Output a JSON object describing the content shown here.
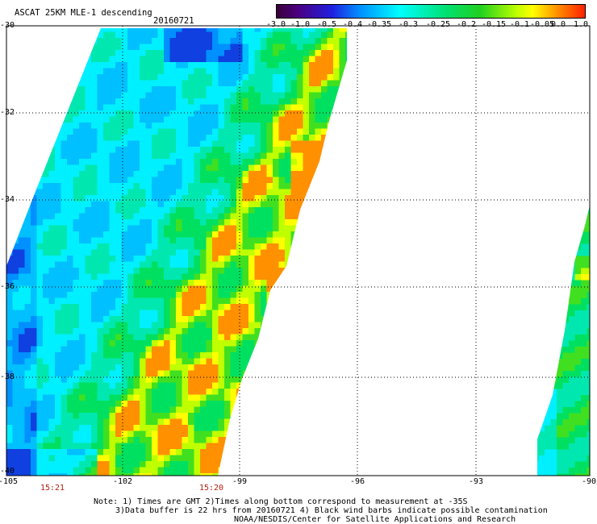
{
  "title": "ASCAT 25KM MLE-1 descending",
  "date": "20160721",
  "colorbar": {
    "labels": [
      "-3.0",
      "-1.0",
      "-0.5",
      "-0.4",
      "-0.35",
      "-0.3",
      "-0.25",
      "-0.2",
      "-0.15",
      "-0.1",
      "-0.05",
      "0.0",
      "1.0"
    ],
    "colors": {
      "low": "#3a003a",
      "mid_low": "#0090ff",
      "mid": "#00ffff",
      "mid_high": "#20d020",
      "high": "#ffff00",
      "max": "#ff2000"
    }
  },
  "axes": {
    "lat_labels": [
      "-30",
      "-32",
      "-34",
      "-36",
      "-38",
      "-40"
    ],
    "lon_labels": [
      "-105",
      "-102",
      "-99",
      "-96",
      "-93",
      "-90"
    ],
    "grid": "dotted"
  },
  "swath_times": [
    "15:21",
    "15:20"
  ],
  "notes": [
    "Note: 1) Times are GMT 2)Times along bottom correspond to measurement at -35S",
    "3)Data buffer is 22 hrs from 20160721 4) Black wind barbs indicate possible contamination",
    "NOAA/NESDIS/Center for Satellite Applications and Research"
  ]
}
